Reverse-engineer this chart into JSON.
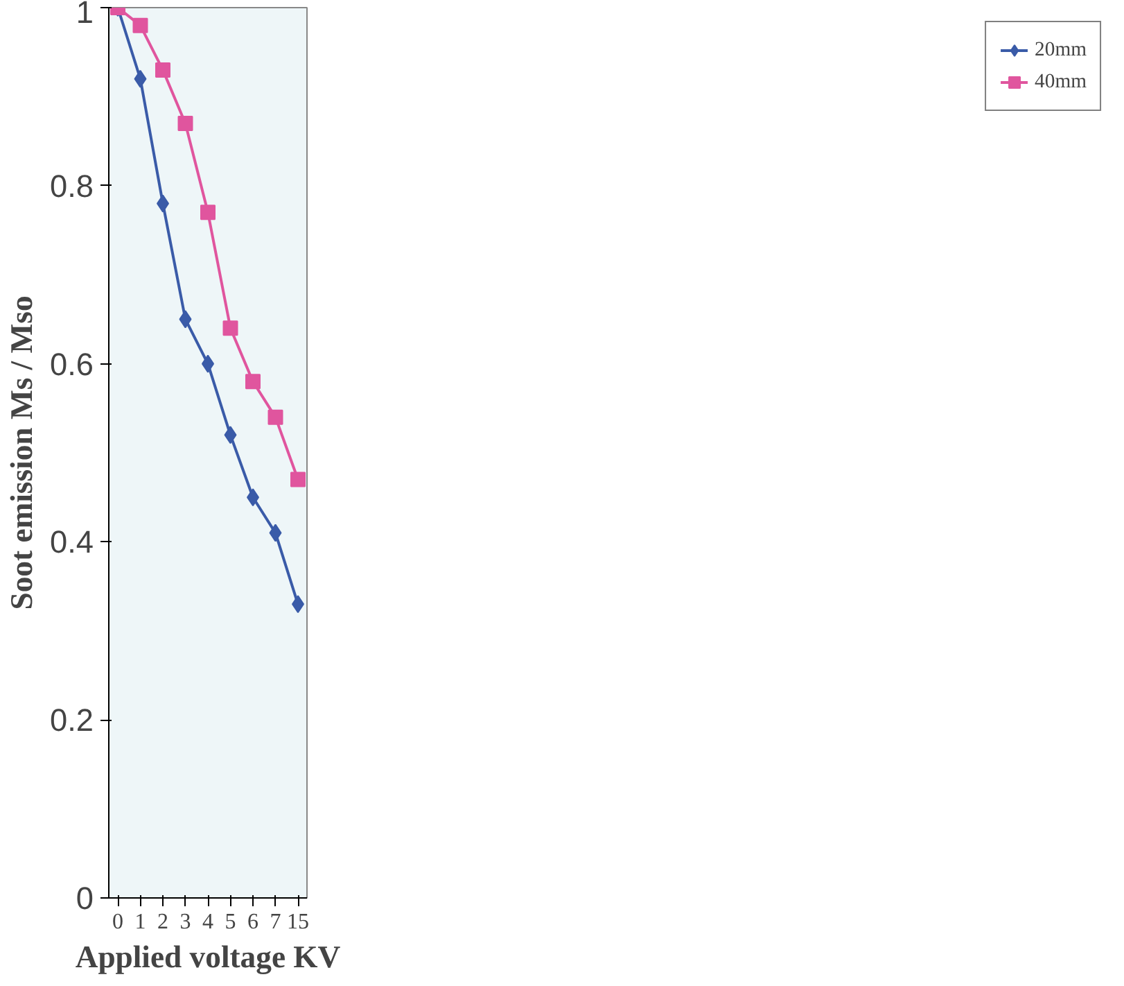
{
  "chart_data": {
    "type": "line",
    "xlabel": "Applied voltage KV",
    "ylabel": "Soot emission Ms / Mso",
    "categories": [
      "0",
      "1",
      "2",
      "3",
      "4",
      "5",
      "6",
      "7",
      "15"
    ],
    "series": [
      {
        "name": "20mm",
        "color": "#3a5ba8",
        "marker": "diamond",
        "values": [
          1,
          0.92,
          0.78,
          0.65,
          0.6,
          0.52,
          0.45,
          0.41,
          0.33
        ]
      },
      {
        "name": "40mm",
        "color": "#e0559e",
        "marker": "square",
        "values": [
          1,
          0.98,
          0.93,
          0.87,
          0.77,
          0.64,
          0.58,
          0.54,
          0.47
        ]
      }
    ],
    "ylim": [
      0,
      1
    ],
    "yticks": [
      0,
      0.2,
      0.4,
      0.6,
      0.8,
      1
    ],
    "grid": false,
    "legend": "right",
    "line_style": "solid"
  }
}
